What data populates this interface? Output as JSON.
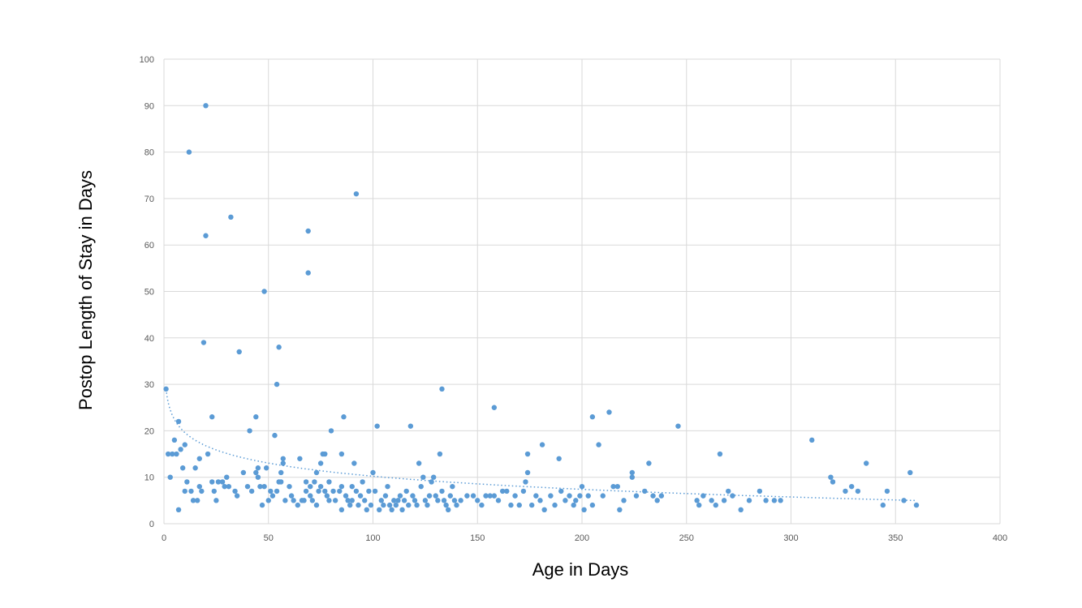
{
  "chart_data": {
    "type": "scatter",
    "title": "",
    "xlabel": "Age in Days",
    "ylabel": "Postop Length of Stay in Days",
    "xlim": [
      0,
      400
    ],
    "ylim": [
      0,
      100
    ],
    "x_ticks": [
      "0",
      "50",
      "100",
      "150",
      "200",
      "250",
      "300",
      "350",
      "400"
    ],
    "y_ticks": [
      "0",
      "10",
      "20",
      "30",
      "40",
      "50",
      "60",
      "70",
      "80",
      "90",
      "100"
    ],
    "grid": true,
    "legend": "none",
    "color": "#5b9bd5",
    "trendline": {
      "type": "logarithmic",
      "style": "dotted",
      "x_range": [
        1,
        360
      ],
      "y_start": 29,
      "y_end": 5
    },
    "points": [
      [
        1,
        29
      ],
      [
        2,
        15
      ],
      [
        3,
        10
      ],
      [
        4,
        15
      ],
      [
        5,
        18
      ],
      [
        6,
        15
      ],
      [
        7,
        22
      ],
      [
        7,
        3
      ],
      [
        8,
        16
      ],
      [
        9,
        12
      ],
      [
        10,
        17
      ],
      [
        10,
        7
      ],
      [
        11,
        9
      ],
      [
        12,
        80
      ],
      [
        13,
        7
      ],
      [
        14,
        5
      ],
      [
        15,
        12
      ],
      [
        16,
        5
      ],
      [
        17,
        8
      ],
      [
        17,
        14
      ],
      [
        18,
        7
      ],
      [
        19,
        39
      ],
      [
        20,
        90
      ],
      [
        20,
        62
      ],
      [
        21,
        15
      ],
      [
        23,
        23
      ],
      [
        23,
        9
      ],
      [
        24,
        7
      ],
      [
        25,
        5
      ],
      [
        26,
        9
      ],
      [
        28,
        9
      ],
      [
        29,
        8
      ],
      [
        30,
        10
      ],
      [
        31,
        8
      ],
      [
        32,
        66
      ],
      [
        34,
        7
      ],
      [
        35,
        6
      ],
      [
        36,
        37
      ],
      [
        38,
        11
      ],
      [
        40,
        8
      ],
      [
        41,
        20
      ],
      [
        42,
        7
      ],
      [
        44,
        23
      ],
      [
        44,
        11
      ],
      [
        45,
        12
      ],
      [
        45,
        10
      ],
      [
        46,
        8
      ],
      [
        47,
        4
      ],
      [
        48,
        50
      ],
      [
        48,
        8
      ],
      [
        49,
        12
      ],
      [
        50,
        5
      ],
      [
        51,
        7
      ],
      [
        52,
        6
      ],
      [
        53,
        19
      ],
      [
        54,
        30
      ],
      [
        54,
        7
      ],
      [
        55,
        38
      ],
      [
        55,
        9
      ],
      [
        56,
        11
      ],
      [
        56,
        9
      ],
      [
        57,
        14
      ],
      [
        57,
        13
      ],
      [
        58,
        5
      ],
      [
        60,
        8
      ],
      [
        61,
        6
      ],
      [
        62,
        5
      ],
      [
        64,
        4
      ],
      [
        65,
        14
      ],
      [
        66,
        5
      ],
      [
        67,
        5
      ],
      [
        68,
        7
      ],
      [
        68,
        9
      ],
      [
        69,
        63
      ],
      [
        69,
        54
      ],
      [
        70,
        8
      ],
      [
        70,
        6
      ],
      [
        71,
        5
      ],
      [
        72,
        9
      ],
      [
        73,
        4
      ],
      [
        73,
        11
      ],
      [
        74,
        7
      ],
      [
        75,
        13
      ],
      [
        75,
        8
      ],
      [
        76,
        15
      ],
      [
        77,
        7
      ],
      [
        77,
        15
      ],
      [
        78,
        6
      ],
      [
        79,
        9
      ],
      [
        79,
        5
      ],
      [
        80,
        20
      ],
      [
        81,
        7
      ],
      [
        82,
        5
      ],
      [
        84,
        7
      ],
      [
        85,
        8
      ],
      [
        85,
        3
      ],
      [
        85,
        15
      ],
      [
        86,
        23
      ],
      [
        87,
        6
      ],
      [
        88,
        5
      ],
      [
        89,
        4
      ],
      [
        90,
        8
      ],
      [
        90,
        5
      ],
      [
        91,
        13
      ],
      [
        92,
        71
      ],
      [
        92,
        7
      ],
      [
        93,
        4
      ],
      [
        94,
        6
      ],
      [
        95,
        9
      ],
      [
        96,
        5
      ],
      [
        97,
        3
      ],
      [
        98,
        7
      ],
      [
        99,
        4
      ],
      [
        100,
        11
      ],
      [
        101,
        7
      ],
      [
        102,
        21
      ],
      [
        103,
        3
      ],
      [
        104,
        5
      ],
      [
        105,
        4
      ],
      [
        106,
        6
      ],
      [
        107,
        8
      ],
      [
        108,
        4
      ],
      [
        109,
        3
      ],
      [
        110,
        5
      ],
      [
        111,
        4
      ],
      [
        112,
        5
      ],
      [
        113,
        6
      ],
      [
        114,
        3
      ],
      [
        115,
        5
      ],
      [
        116,
        7
      ],
      [
        117,
        4
      ],
      [
        118,
        21
      ],
      [
        119,
        6
      ],
      [
        120,
        5
      ],
      [
        121,
        4
      ],
      [
        122,
        13
      ],
      [
        123,
        8
      ],
      [
        124,
        10
      ],
      [
        125,
        5
      ],
      [
        126,
        4
      ],
      [
        127,
        6
      ],
      [
        128,
        9
      ],
      [
        129,
        10
      ],
      [
        130,
        6
      ],
      [
        131,
        5
      ],
      [
        132,
        15
      ],
      [
        133,
        29
      ],
      [
        133,
        7
      ],
      [
        134,
        5
      ],
      [
        135,
        4
      ],
      [
        136,
        3
      ],
      [
        137,
        6
      ],
      [
        138,
        8
      ],
      [
        139,
        5
      ],
      [
        140,
        4
      ],
      [
        142,
        5
      ],
      [
        145,
        6
      ],
      [
        148,
        6
      ],
      [
        150,
        5
      ],
      [
        152,
        4
      ],
      [
        154,
        6
      ],
      [
        156,
        6
      ],
      [
        158,
        25
      ],
      [
        158,
        6
      ],
      [
        160,
        5
      ],
      [
        162,
        7
      ],
      [
        164,
        7
      ],
      [
        166,
        4
      ],
      [
        168,
        6
      ],
      [
        170,
        4
      ],
      [
        172,
        7
      ],
      [
        173,
        9
      ],
      [
        174,
        11
      ],
      [
        174,
        15
      ],
      [
        176,
        4
      ],
      [
        178,
        6
      ],
      [
        180,
        5
      ],
      [
        181,
        17
      ],
      [
        182,
        3
      ],
      [
        185,
        6
      ],
      [
        187,
        4
      ],
      [
        189,
        14
      ],
      [
        190,
        7
      ],
      [
        192,
        5
      ],
      [
        194,
        6
      ],
      [
        196,
        4
      ],
      [
        197,
        5
      ],
      [
        199,
        6
      ],
      [
        200,
        8
      ],
      [
        201,
        3
      ],
      [
        203,
        6
      ],
      [
        205,
        23
      ],
      [
        205,
        4
      ],
      [
        208,
        17
      ],
      [
        210,
        6
      ],
      [
        213,
        24
      ],
      [
        215,
        8
      ],
      [
        217,
        8
      ],
      [
        218,
        3
      ],
      [
        220,
        5
      ],
      [
        224,
        11
      ],
      [
        224,
        10
      ],
      [
        226,
        6
      ],
      [
        230,
        7
      ],
      [
        232,
        13
      ],
      [
        234,
        6
      ],
      [
        236,
        5
      ],
      [
        238,
        6
      ],
      [
        246,
        21
      ],
      [
        255,
        5
      ],
      [
        256,
        4
      ],
      [
        258,
        6
      ],
      [
        262,
        5
      ],
      [
        264,
        4
      ],
      [
        266,
        15
      ],
      [
        268,
        5
      ],
      [
        270,
        7
      ],
      [
        272,
        6
      ],
      [
        276,
        3
      ],
      [
        280,
        5
      ],
      [
        285,
        7
      ],
      [
        288,
        5
      ],
      [
        292,
        5
      ],
      [
        295,
        5
      ],
      [
        310,
        18
      ],
      [
        319,
        10
      ],
      [
        320,
        9
      ],
      [
        326,
        7
      ],
      [
        329,
        8
      ],
      [
        332,
        7
      ],
      [
        336,
        13
      ],
      [
        344,
        4
      ],
      [
        346,
        7
      ],
      [
        354,
        5
      ],
      [
        357,
        11
      ],
      [
        360,
        4
      ]
    ]
  }
}
